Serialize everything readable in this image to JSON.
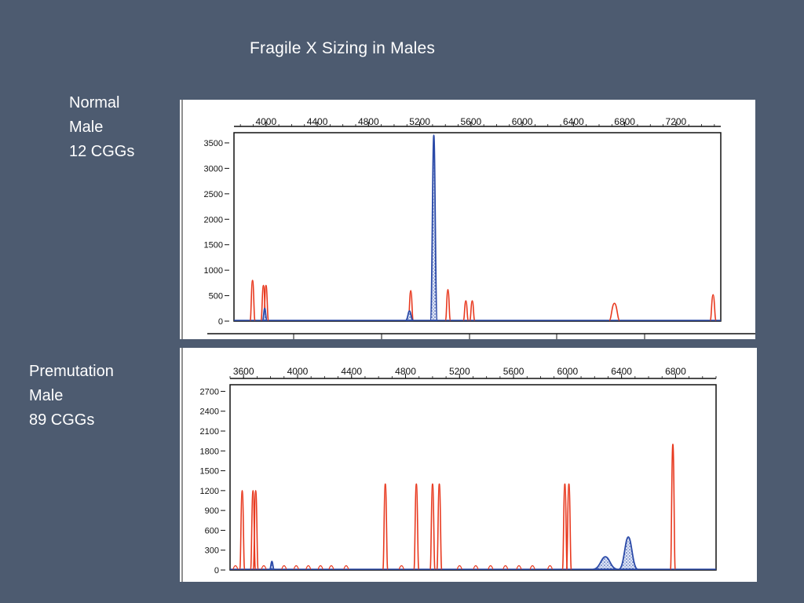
{
  "slide": {
    "title": "Fragile X Sizing in Males"
  },
  "samples": [
    {
      "lines": [
        "Normal",
        "Male",
        "12 CGGs"
      ]
    },
    {
      "lines": [
        "Premutation",
        "Male",
        "89 CGGs"
      ]
    }
  ],
  "colors": {
    "background": "#4d5b70",
    "size_standard": "#e8391f",
    "sample_trace": "#2b4aa8"
  },
  "chart_data": [
    {
      "type": "line",
      "title": "",
      "xlabel": "",
      "ylabel": "",
      "x_ticks": [
        4000,
        4400,
        4800,
        5200,
        5600,
        6000,
        6400,
        6800,
        7200
      ],
      "y_ticks": [
        0,
        500,
        1000,
        1500,
        2000,
        2500,
        3000,
        3500
      ],
      "xlim": [
        3750,
        7550
      ],
      "ylim": [
        0,
        3700
      ],
      "grid": false,
      "series": [
        {
          "kind": "size_standard",
          "peaks": [
            {
              "x": 3895,
              "height": 800,
              "width": 10
            },
            {
              "x": 3980,
              "height": 700,
              "width": 8
            },
            {
              "x": 4000,
              "height": 700,
              "width": 8
            },
            {
              "x": 5130,
              "height": 600,
              "width": 14
            },
            {
              "x": 5420,
              "height": 620,
              "width": 14
            },
            {
              "x": 5560,
              "height": 400,
              "width": 12
            },
            {
              "x": 5610,
              "height": 400,
              "width": 12
            },
            {
              "x": 6720,
              "height": 350,
              "width": 40
            },
            {
              "x": 7490,
              "height": 520,
              "width": 22
            }
          ]
        },
        {
          "kind": "sample",
          "filled": true,
          "peaks": [
            {
              "x": 3990,
              "height": 250,
              "width": 10
            },
            {
              "x": 5120,
              "height": 200,
              "width": 30
            },
            {
              "x": 5310,
              "height": 3650,
              "width": 28
            }
          ]
        }
      ]
    },
    {
      "type": "line",
      "title": "",
      "xlabel": "",
      "ylabel": "",
      "x_ticks": [
        3600,
        4000,
        4400,
        4800,
        5200,
        5600,
        6000,
        6400,
        6800
      ],
      "y_ticks": [
        0,
        300,
        600,
        900,
        1200,
        1500,
        1800,
        2100,
        2400,
        2700
      ],
      "xlim": [
        3500,
        7100
      ],
      "ylim": [
        0,
        2800
      ],
      "grid": false,
      "series": [
        {
          "kind": "size_standard",
          "peaks": [
            {
              "x": 3590,
              "height": 1200,
              "width": 8
            },
            {
              "x": 3670,
              "height": 1200,
              "width": 8
            },
            {
              "x": 3690,
              "height": 1200,
              "width": 8
            },
            {
              "x": 4650,
              "height": 1300,
              "width": 8
            },
            {
              "x": 4880,
              "height": 1300,
              "width": 8
            },
            {
              "x": 5000,
              "height": 1300,
              "width": 8
            },
            {
              "x": 5050,
              "height": 1300,
              "width": 8
            },
            {
              "x": 5980,
              "height": 1300,
              "width": 8
            },
            {
              "x": 6010,
              "height": 1300,
              "width": 8
            },
            {
              "x": 6780,
              "height": 1900,
              "width": 10
            }
          ]
        },
        {
          "kind": "sample",
          "filled": true,
          "peaks": [
            {
              "x": 3810,
              "height": 130,
              "width": 12
            },
            {
              "x": 6280,
              "height": 200,
              "width": 90
            },
            {
              "x": 6450,
              "height": 500,
              "width": 70
            }
          ]
        }
      ]
    }
  ]
}
